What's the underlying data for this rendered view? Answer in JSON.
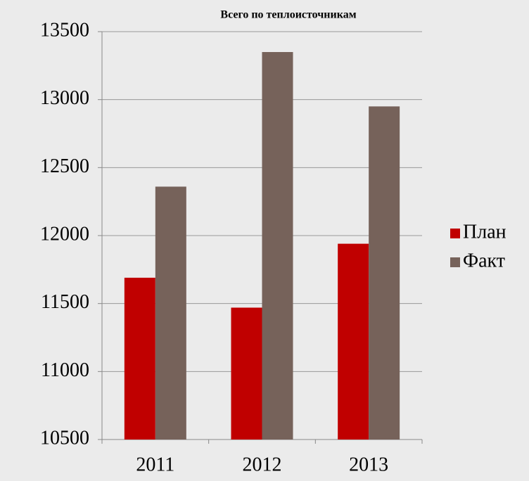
{
  "chart_data": {
    "type": "bar",
    "title": "Всего по теплоисточникам",
    "categories": [
      "2011",
      "2012",
      "2013"
    ],
    "series": [
      {
        "name": "План",
        "color": "#c00000",
        "values": [
          11690,
          11470,
          11940
        ]
      },
      {
        "name": "Факт",
        "color": "#76625a",
        "values": [
          12360,
          13350,
          12950
        ]
      }
    ],
    "ylim": [
      10500,
      13500
    ],
    "yticks": [
      10500,
      11000,
      11500,
      12000,
      12500,
      13000,
      13500
    ],
    "grid": true,
    "legend": "right"
  }
}
